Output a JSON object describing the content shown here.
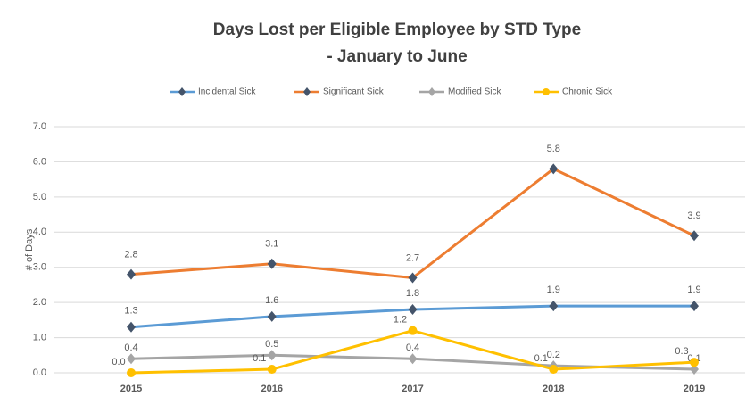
{
  "chart_data": {
    "type": "line",
    "title_lines": [
      "Days Lost per Eligible Employee by STD Type",
      "- January to June"
    ],
    "ylabel": "# of Days",
    "categories": [
      "2015",
      "2016",
      "2017",
      "2018",
      "2019"
    ],
    "series": [
      {
        "name": "Incidental Sick",
        "color": "#5b9bd5",
        "marker_color": "#44546a",
        "marker": "diamond",
        "values": [
          1.3,
          1.6,
          1.8,
          1.9,
          1.9
        ],
        "value_labels": [
          "1.3",
          "1.6",
          "1.8",
          "1.9",
          "1.9"
        ]
      },
      {
        "name": "Significant Sick",
        "color": "#ed7d31",
        "marker_color": "#44546a",
        "marker": "diamond",
        "values": [
          2.8,
          3.1,
          2.7,
          5.8,
          3.9
        ],
        "value_labels": [
          "2.8",
          "3.1",
          "2.7",
          "5.8",
          "3.9"
        ]
      },
      {
        "name": "Modified Sick",
        "color": "#a5a5a5",
        "marker_color": "#a5a5a5",
        "marker": "diamond",
        "values": [
          0.4,
          0.5,
          0.4,
          0.2,
          0.1
        ],
        "value_labels": [
          "0.4",
          "0.5",
          "0.4",
          "0.2",
          "0.1"
        ]
      },
      {
        "name": "Chronic Sick",
        "color": "#ffc000",
        "marker_color": "#ffc000",
        "marker": "circle",
        "values": [
          0,
          0.1,
          1.2,
          0.1,
          0.3
        ],
        "value_labels": [
          "0.0",
          "0.1",
          "1.2",
          "0.1",
          "0.3"
        ]
      }
    ],
    "ylim": [
      0,
      7
    ],
    "yticks": [
      {
        "value": 0,
        "label": "0.0"
      },
      {
        "value": 1,
        "label": "1.0"
      },
      {
        "value": 2,
        "label": "2.0"
      },
      {
        "value": 3,
        "label": "3.0"
      },
      {
        "value": 4,
        "label": "4.0"
      },
      {
        "value": 5,
        "label": "5.0"
      },
      {
        "value": 6,
        "label": "6.0"
      },
      {
        "value": 7,
        "label": "7.0"
      }
    ],
    "grid": true,
    "legend": "top"
  }
}
